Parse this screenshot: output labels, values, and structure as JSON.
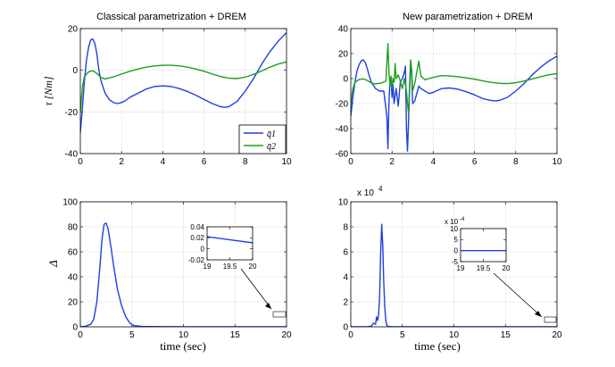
{
  "colors": {
    "q1": "#1f3fe0",
    "q2": "#1e9e1e",
    "axis": "#000000",
    "grid": "#b0b0b0"
  },
  "chart_data": [
    {
      "type": "line",
      "title": "Classical parametrization + DREM",
      "ylabel": "τ [Nm]",
      "xlim": [
        0,
        10
      ],
      "ylim": [
        -40,
        20
      ],
      "xticks": [
        "0",
        "2",
        "4",
        "6",
        "8",
        "10"
      ],
      "yticks": [
        "-40",
        "-20",
        "0",
        "20"
      ],
      "grid": true,
      "legend": {
        "position": "bottom-right",
        "entries": [
          "q̄1",
          "q̄2"
        ]
      },
      "series": [
        {
          "name": "q̄1",
          "color": "#1f3fe0",
          "x": [
            0,
            0.1,
            0.2,
            0.3,
            0.4,
            0.5,
            0.6,
            0.7,
            0.8,
            0.9,
            1.0,
            1.2,
            1.4,
            1.6,
            1.8,
            2.0,
            2.2,
            2.4,
            2.8,
            3.2,
            3.6,
            4.0,
            4.4,
            4.8,
            5.2,
            5.6,
            6.0,
            6.4,
            6.8,
            7.0,
            7.2,
            7.6,
            8.0,
            8.4,
            8.8,
            9.2,
            9.6,
            10.0
          ],
          "y": [
            -30,
            -18,
            -5,
            5,
            11,
            14.5,
            15,
            13,
            8,
            0,
            -5,
            -11,
            -14,
            -15.5,
            -16,
            -15.5,
            -14.5,
            -13,
            -11,
            -9,
            -7.8,
            -7.5,
            -7.8,
            -8.8,
            -10.2,
            -12,
            -14,
            -16,
            -17.5,
            -17.8,
            -17.5,
            -15,
            -10,
            -4,
            3,
            9,
            14,
            18
          ]
        },
        {
          "name": "q̄2",
          "color": "#1e9e1e",
          "x": [
            0,
            0.1,
            0.2,
            0.4,
            0.6,
            0.8,
            1.0,
            1.2,
            1.6,
            2.0,
            2.4,
            2.8,
            3.2,
            3.6,
            4.0,
            4.4,
            4.8,
            5.2,
            5.6,
            6.0,
            6.4,
            6.8,
            7.2,
            7.6,
            8.0,
            8.4,
            8.8,
            9.2,
            9.6,
            10.0
          ],
          "y": [
            -20,
            -8,
            -3,
            -0.8,
            -0.2,
            -1.5,
            -3.5,
            -4.2,
            -3.2,
            -1.8,
            -0.5,
            0.6,
            1.5,
            2.1,
            2.4,
            2.4,
            2.1,
            1.5,
            0.6,
            -0.5,
            -1.8,
            -3,
            -3.8,
            -4,
            -3.3,
            -2,
            -0.3,
            1.5,
            3,
            4
          ]
        }
      ]
    },
    {
      "type": "line",
      "title": "New parametrization + DREM",
      "xlim": [
        0,
        10
      ],
      "ylim": [
        -60,
        40
      ],
      "xticks": [
        "0",
        "2",
        "4",
        "6",
        "8",
        "10"
      ],
      "yticks": [
        "-60",
        "-40",
        "-20",
        "0",
        "20",
        "40"
      ],
      "grid": true,
      "series": [
        {
          "name": "q̄1",
          "color": "#1f3fe0",
          "x": [
            0,
            0.1,
            0.2,
            0.3,
            0.4,
            0.5,
            0.6,
            0.7,
            0.8,
            0.9,
            1.0,
            1.2,
            1.4,
            1.6,
            1.75,
            1.8,
            1.85,
            1.9,
            1.95,
            2.0,
            2.05,
            2.1,
            2.2,
            2.3,
            2.4,
            2.5,
            2.6,
            2.65,
            2.7,
            2.75,
            2.8,
            2.85,
            2.9,
            2.95,
            3.0,
            3.1,
            3.2,
            3.3,
            3.4,
            3.6,
            3.8,
            4.0,
            4.4,
            4.8,
            5.2,
            5.6,
            6.0,
            6.4,
            6.8,
            7.0,
            7.2,
            7.6,
            8.0,
            8.4,
            8.8,
            9.2,
            9.6,
            10.0
          ],
          "y": [
            -30,
            -15,
            -3,
            6,
            11,
            14,
            15,
            13,
            8,
            2,
            -3,
            -8,
            -10,
            -10,
            -30,
            -56,
            -20,
            -2,
            0,
            -15,
            -5,
            -20,
            -8,
            -22,
            -3,
            0,
            5,
            10,
            -40,
            -58,
            -35,
            -10,
            12,
            5,
            -20,
            -18,
            -12,
            -6,
            -8,
            -10,
            -12,
            -11,
            -8,
            -7.5,
            -8.5,
            -10.5,
            -13,
            -16,
            -17.5,
            -17.8,
            -17.5,
            -15,
            -10,
            -4,
            3,
            9,
            14,
            18
          ]
        },
        {
          "name": "q̄2",
          "color": "#1e9e1e",
          "x": [
            0,
            0.1,
            0.2,
            0.4,
            0.6,
            0.8,
            1.0,
            1.2,
            1.5,
            1.7,
            1.8,
            1.85,
            1.9,
            1.95,
            2.0,
            2.05,
            2.1,
            2.15,
            2.2,
            2.3,
            2.4,
            2.5,
            2.6,
            2.7,
            2.75,
            2.8,
            2.85,
            2.9,
            2.95,
            3.0,
            3.1,
            3.2,
            3.3,
            3.4,
            3.6,
            3.8,
            4.0,
            4.4,
            4.8,
            5.2,
            5.6,
            6.0,
            6.4,
            6.8,
            7.2,
            7.6,
            8.0,
            8.4,
            8.8,
            9.2,
            9.6,
            10.0
          ],
          "y": [
            -20,
            -8,
            -3,
            -0.8,
            -0.2,
            -1.5,
            -3.5,
            -4.2,
            -3.5,
            -2,
            28,
            5,
            -5,
            2,
            -8,
            0,
            -3,
            12,
            0,
            3,
            -2,
            -8,
            0,
            -10,
            -20,
            -28,
            -5,
            15,
            8,
            -10,
            -4,
            5,
            14,
            2,
            -1,
            0,
            1,
            2.4,
            2.1,
            1.5,
            0.6,
            -0.5,
            -1.8,
            -3,
            -3.8,
            -4,
            -3.3,
            -2,
            -0.3,
            1.5,
            3,
            4
          ]
        }
      ]
    },
    {
      "type": "line",
      "ylabel": "Δ",
      "xlabel": "time (sec)",
      "xlim": [
        0,
        20
      ],
      "ylim": [
        0,
        100
      ],
      "xticks": [
        "0",
        "5",
        "10",
        "15",
        "20"
      ],
      "yticks": [
        "0",
        "20",
        "40",
        "60",
        "80",
        "100"
      ],
      "grid": true,
      "series": [
        {
          "name": "",
          "color": "#1f3fe0",
          "x": [
            0,
            0.5,
            1.0,
            1.3,
            1.6,
            1.9,
            2.1,
            2.3,
            2.5,
            2.7,
            3.0,
            3.3,
            3.6,
            4.0,
            4.4,
            4.8,
            5.2,
            6,
            8,
            10,
            12,
            14,
            16,
            18,
            20
          ],
          "y": [
            0,
            0.5,
            2,
            6,
            20,
            48,
            70,
            82,
            83,
            78,
            62,
            45,
            30,
            17,
            8,
            3,
            1,
            0.3,
            0.1,
            0.05,
            0.03,
            0.02,
            0.02,
            0.02,
            0.02
          ]
        }
      ],
      "inset": {
        "xlim": [
          19,
          20
        ],
        "ylim": [
          -0.02,
          0.04
        ],
        "xticks": [
          "19",
          "19.5",
          "20"
        ],
        "yticks": [
          "-0.02",
          "0",
          "0.02",
          "0.04"
        ],
        "x": [
          19,
          20
        ],
        "y": [
          0.022,
          0.011
        ]
      }
    },
    {
      "type": "line",
      "xlabel": "time (sec)",
      "xlim": [
        0,
        20
      ],
      "ylim": [
        0,
        10
      ],
      "yscale_label": "x 10",
      "yscale_exp": "4",
      "xticks": [
        "0",
        "5",
        "10",
        "15",
        "20"
      ],
      "yticks": [
        "0",
        "2",
        "4",
        "6",
        "8",
        "10"
      ],
      "grid": true,
      "series": [
        {
          "name": "",
          "color": "#1f3fe0",
          "x": [
            0,
            1,
            1.5,
            2.0,
            2.2,
            2.4,
            2.5,
            2.6,
            2.7,
            2.8,
            2.9,
            3.0,
            3.1,
            3.2,
            3.3,
            3.4,
            3.5,
            3.7,
            4.0,
            5,
            8,
            12,
            16,
            20
          ],
          "y": [
            0,
            0,
            0,
            0.05,
            0.3,
            0.2,
            0.8,
            0.5,
            1.0,
            2.5,
            6,
            8.2,
            6.5,
            3.5,
            1.5,
            0.5,
            0.1,
            0.02,
            0.01,
            0,
            0,
            0,
            0,
            0
          ]
        }
      ],
      "inset": {
        "xlim": [
          19,
          20
        ],
        "ylim": [
          -5,
          10
        ],
        "yscale_label": "x 10",
        "yscale_exp": "-4",
        "xticks": [
          "19",
          "19.5",
          "20"
        ],
        "yticks": [
          "-5",
          "0",
          "5",
          "10"
        ],
        "x": [
          19,
          20
        ],
        "y": [
          0,
          0
        ]
      }
    }
  ]
}
